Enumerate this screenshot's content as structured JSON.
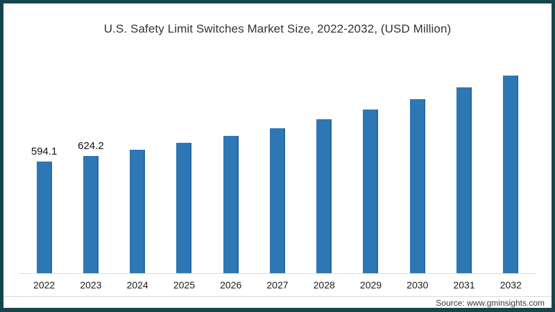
{
  "frame": {
    "border_color": "#16454e",
    "background": "#ffffff"
  },
  "header": {
    "title": "U.S. Safety Limit Switches Market Size, 2022-2032, (USD Million)"
  },
  "footer": {
    "source": "Source: www.gminsights.com"
  },
  "chart_data": {
    "type": "bar",
    "title": "U.S. Safety Limit Switches Market Size, 2022-2032, (USD Million)",
    "xlabel": "",
    "ylabel": "",
    "categories": [
      "2022",
      "2023",
      "2024",
      "2025",
      "2026",
      "2027",
      "2028",
      "2029",
      "2030",
      "2031",
      "2032"
    ],
    "values": [
      594.1,
      624.2,
      658,
      692,
      729,
      772,
      821,
      870,
      926,
      989,
      1053
    ],
    "shown_value_labels": {
      "2022": "594.1",
      "2023": "624.2"
    },
    "bar_color": "#2e77b5",
    "ylim": [
      0,
      1085
    ],
    "grid": false,
    "legend": "none"
  }
}
